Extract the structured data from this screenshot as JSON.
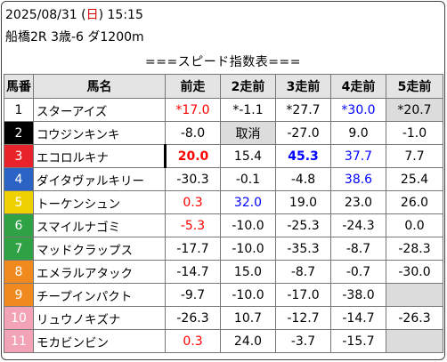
{
  "header": {
    "date_prefix": "2025/08/31 (",
    "weekday": "日",
    "date_suffix": ") 15:15",
    "race_info": "船橋2R 3歳-6 ダ1200m"
  },
  "title": "===スピード指数表===",
  "columns": {
    "num": "馬番",
    "name": "馬名",
    "r1": "前走",
    "r2": "2走前",
    "r3": "3走前",
    "r4": "4走前",
    "r5": "5走前"
  },
  "colors": {
    "waku1": "#ffffff",
    "waku2": "#000000",
    "waku3": "#e8242a",
    "waku4": "#2a63c4",
    "waku5": "#efd000",
    "waku6": "#2ea245",
    "waku7": "#f08a1e",
    "waku8": "#f2a4b6"
  },
  "rows": [
    {
      "num": "1",
      "name": "スターアイズ",
      "r1": "*17.0",
      "r2": "*-1.1",
      "r3": "*27.7",
      "r4": "*30.0",
      "r5": "*20.7"
    },
    {
      "num": "2",
      "name": "コウジンキンキ",
      "r1": "-8.0",
      "r2": "取消",
      "r3": "-27.0",
      "r4": "9.0",
      "r5": "-1.0"
    },
    {
      "num": "3",
      "name": "エコロルキナ",
      "r1": "20.0",
      "r2": "15.4",
      "r3": "45.3",
      "r4": "37.7",
      "r5": "7.7"
    },
    {
      "num": "4",
      "name": "ダイタヴァルキリー",
      "r1": "-30.3",
      "r2": "-0.1",
      "r3": "-4.8",
      "r4": "38.6",
      "r5": "25.4"
    },
    {
      "num": "5",
      "name": "トーケンシュン",
      "r1": "0.3",
      "r2": "32.0",
      "r3": "19.0",
      "r4": "23.0",
      "r5": "26.0"
    },
    {
      "num": "6",
      "name": "スマイルナゴミ",
      "r1": "-5.3",
      "r2": "-10.0",
      "r3": "-25.3",
      "r4": "-24.3",
      "r5": "0.0"
    },
    {
      "num": "7",
      "name": "マッドクラップス",
      "r1": "-17.7",
      "r2": "-10.0",
      "r3": "-35.3",
      "r4": "-8.7",
      "r5": "-28.3"
    },
    {
      "num": "8",
      "name": "エメラルアタック",
      "r1": "-14.7",
      "r2": "15.0",
      "r3": "-8.7",
      "r4": "-0.7",
      "r5": "-30.0"
    },
    {
      "num": "9",
      "name": "チープインパクト",
      "r1": "-9.7",
      "r2": "-10.0",
      "r3": "-17.0",
      "r4": "-38.0",
      "r5": ""
    },
    {
      "num": "10",
      "name": "リュウノキズナ",
      "r1": "-26.3",
      "r2": "10.7",
      "r3": "-12.7",
      "r4": "-14.7",
      "r5": "-26.3"
    },
    {
      "num": "11",
      "name": "モカビンビン",
      "r1": "0.3",
      "r2": "24.0",
      "r3": "-3.7",
      "r4": "-15.7",
      "r5": ""
    }
  ]
}
